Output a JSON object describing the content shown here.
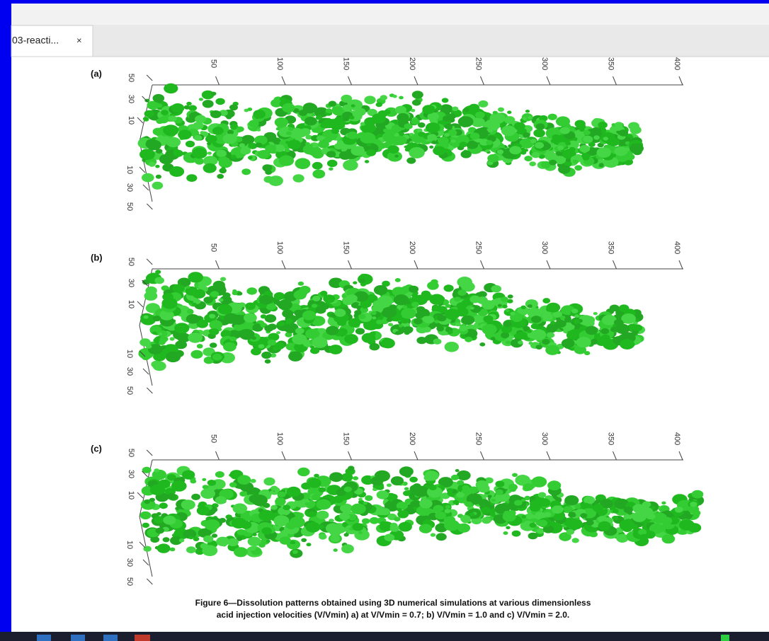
{
  "tab": {
    "title": "03-reacti...",
    "close": "×"
  },
  "figure": {
    "panels": [
      {
        "label": "(a)",
        "length_ticks": [
          50,
          100,
          150,
          200,
          250,
          300,
          350,
          400
        ],
        "depth_ticks": [
          50,
          30,
          10,
          10,
          30,
          50
        ]
      },
      {
        "label": "(b)",
        "length_ticks": [
          50,
          100,
          150,
          200,
          250,
          300,
          350,
          400
        ],
        "depth_ticks": [
          50,
          30,
          10,
          10,
          30,
          50
        ]
      },
      {
        "label": "(c)",
        "length_ticks": [
          50,
          100,
          150,
          200,
          250,
          300,
          350,
          400
        ],
        "depth_ticks": [
          50,
          30,
          10,
          10,
          30,
          50
        ]
      }
    ],
    "caption": [
      "Figure 6—Dissolution patterns obtained using 3D numerical simulations at various dimensionless",
      "acid injection velocities (V/Vmin) a) at V/Vmin = 0.7; b) V/Vmin = 1.0 and c) V/Vmin = 2.0."
    ]
  }
}
